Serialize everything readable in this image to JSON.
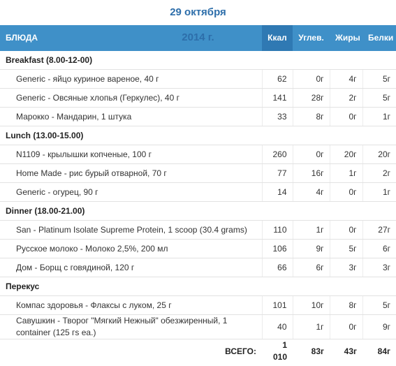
{
  "title": "29 октября 2014 г.",
  "table": {
    "columns": [
      "БЛЮДА",
      "Ккал",
      "Углев.",
      "Жиры",
      "Белки"
    ],
    "sections": [
      {
        "name": "Breakfast (8.00-12-00)",
        "rows": [
          [
            "Generic - яйцо куриное вареное, 40 г",
            "62",
            "0г",
            "4г",
            "5г"
          ],
          [
            "Generic - Овсяные хлопья (Геркулес), 40 г",
            "141",
            "28г",
            "2г",
            "5г"
          ],
          [
            "Марокко - Мандарин, 1 штука",
            "33",
            "8г",
            "0г",
            "1г"
          ]
        ]
      },
      {
        "name": "Lunch (13.00-15.00)",
        "rows": [
          [
            "N1109 - крылышки копченые, 100 г",
            "260",
            "0г",
            "20г",
            "20г"
          ],
          [
            "Home Made - рис бурый отварной, 70 г",
            "77",
            "16г",
            "1г",
            "2г"
          ],
          [
            "Generic - огурец, 90 г",
            "14",
            "4г",
            "0г",
            "1г"
          ]
        ]
      },
      {
        "name": "Dinner (18.00-21.00)",
        "rows": [
          [
            "San - Platinum Isolate Supreme Protein, 1 scoop (30.4 grams)",
            "110",
            "1г",
            "0г",
            "27г"
          ],
          [
            "Русское молоко - Молоко 2,5%, 200 мл",
            "106",
            "9г",
            "5г",
            "6г"
          ],
          [
            "Дом - Борщ с говядиной, 120 г",
            "66",
            "6г",
            "3г",
            "3г"
          ]
        ]
      },
      {
        "name": "Перекус",
        "rows": [
          [
            "Компас здоровья - Флаксы с луком, 25 г",
            "101",
            "10г",
            "8г",
            "5г"
          ],
          [
            "Савушкин - Творог \"Мягкий Нежный\" обезжиренный, 1 container (125 гs ea.)",
            "40",
            "1г",
            "0г",
            "9г"
          ]
        ]
      }
    ],
    "total": [
      "ВСЕГО:",
      "1 010",
      "83г",
      "43г",
      "84г"
    ]
  }
}
